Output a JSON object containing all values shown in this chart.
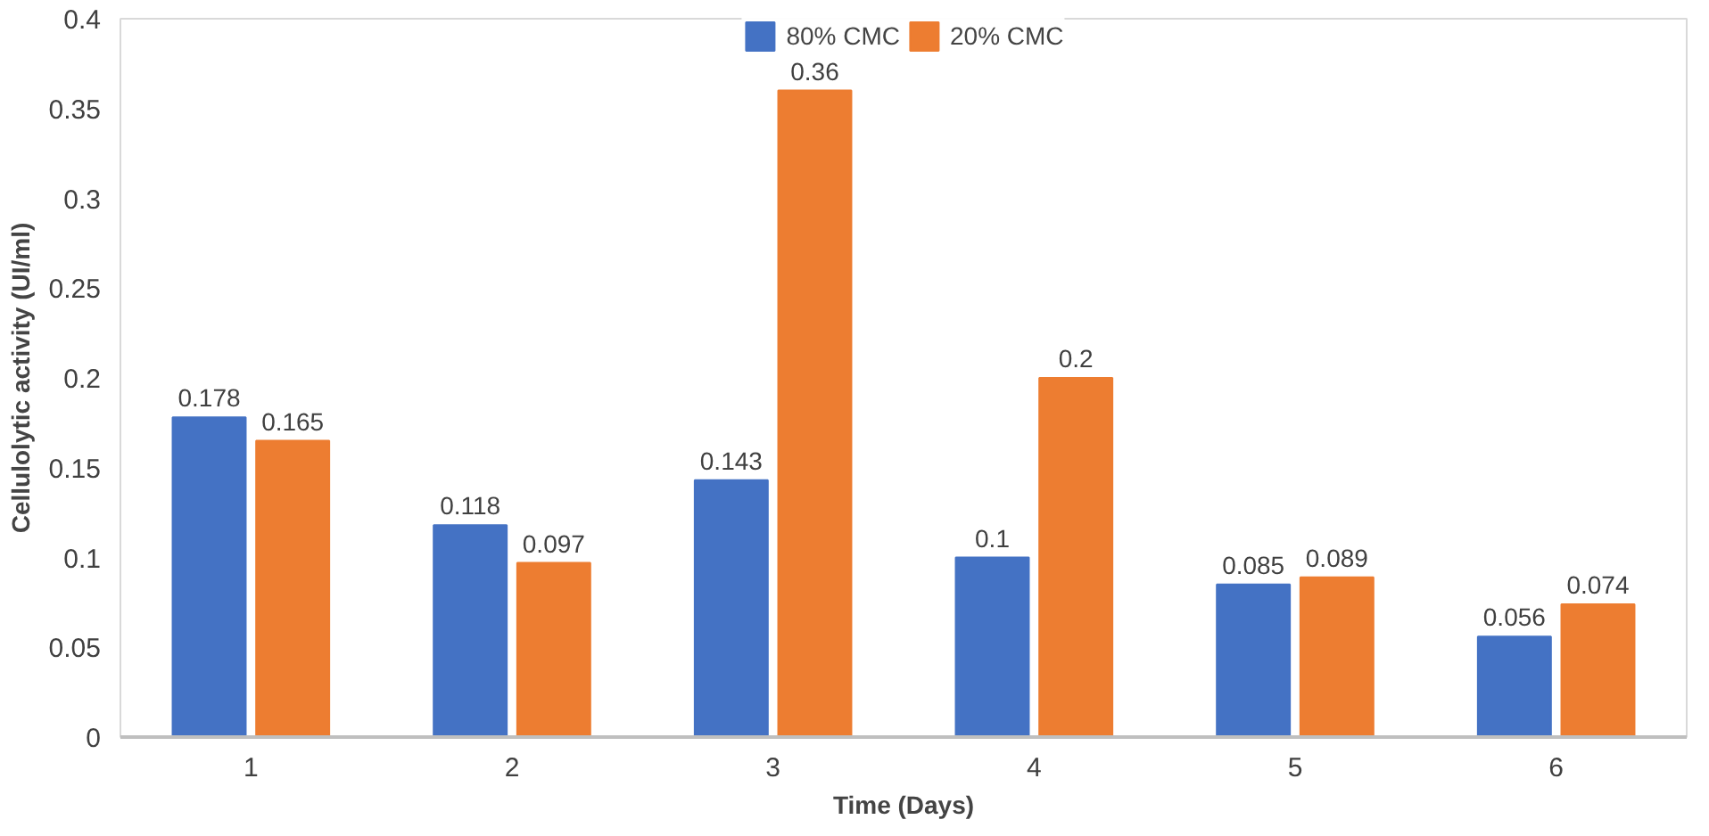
{
  "chart_data": {
    "type": "bar",
    "xlabel": "Time (Days)",
    "ylabel": "Cellulolytic activity (UI/ml)",
    "categories": [
      "1",
      "2",
      "3",
      "4",
      "5",
      "6"
    ],
    "series": [
      {
        "name": "80% CMC",
        "color": "#4472c4",
        "values": [
          0.178,
          0.118,
          0.143,
          0.1,
          0.085,
          0.056
        ]
      },
      {
        "name": "20% CMC",
        "color": "#ed7d31",
        "values": [
          0.165,
          0.097,
          0.36,
          0.2,
          0.089,
          0.074
        ]
      }
    ],
    "ylim": [
      0,
      0.4
    ],
    "yticks": [
      0,
      0.05,
      0.1,
      0.15,
      0.2,
      0.25,
      0.3,
      0.35,
      0.4
    ],
    "data_labels": true,
    "legend": "top",
    "grid": false
  }
}
